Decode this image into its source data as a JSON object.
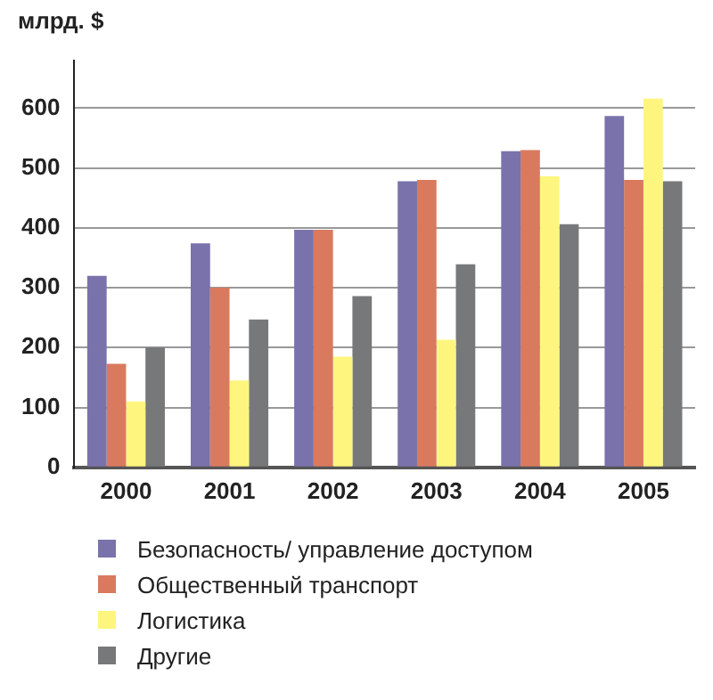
{
  "chart_data": {
    "type": "bar",
    "ylabel": "млрд. $",
    "categories": [
      "2000",
      "2001",
      "2002",
      "2003",
      "2004",
      "2005"
    ],
    "series": [
      {
        "name": "Безопасность/ управление доступом",
        "color": "#7a72aa",
        "values": [
          320,
          374,
          397,
          478,
          528,
          587
        ]
      },
      {
        "name": "Общественный транспорт",
        "color": "#d97a5e",
        "values": [
          173,
          300,
          397,
          480,
          530,
          480
        ]
      },
      {
        "name": "Логистика",
        "color": "#fef57e",
        "values": [
          110,
          145,
          185,
          213,
          486,
          616
        ]
      },
      {
        "name": "Другие",
        "color": "#77787a",
        "values": [
          200,
          247,
          286,
          339,
          406,
          478
        ]
      }
    ],
    "ylim": [
      0,
      680
    ],
    "yticks": [
      0,
      100,
      200,
      300,
      400,
      500,
      600
    ],
    "grid": "y",
    "legend": "bottom"
  }
}
